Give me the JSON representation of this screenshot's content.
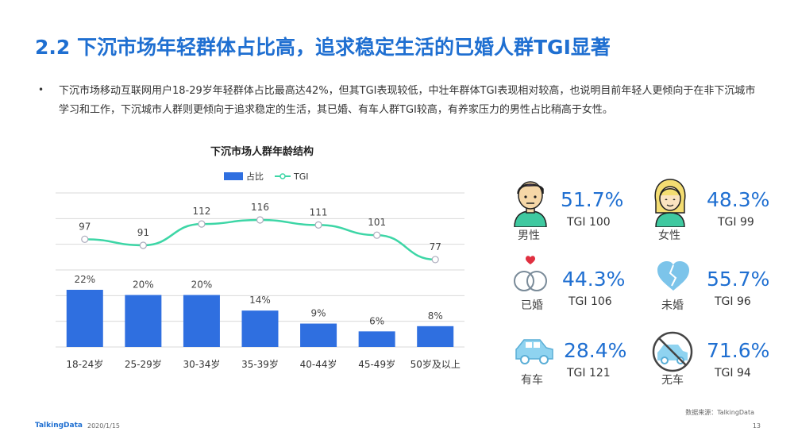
{
  "header": {
    "title": "2.2 下沉市场年轻群体占比高，追求稳定生活的已婚人群TGI显著"
  },
  "body": {
    "bullet": "•",
    "paragraph": "下沉市场移动互联网用户18-29岁年轻群体占比最高达42%，但其TGI表现较低，中壮年群体TGI表现相对较高，也说明目前年轻人更倾向于在非下沉城市学习和工作，下沉城市人群则更倾向于追求稳定的生活，其已婚、有车人群TGI较高，有养家压力的男性占比稍高于女性。"
  },
  "chart_data": {
    "type": "bar",
    "title": "下沉市场人群年龄结构",
    "categories": [
      "18-24岁",
      "25-29岁",
      "30-34岁",
      "35-39岁",
      "40-44岁",
      "45-49岁",
      "50岁及以上"
    ],
    "series": [
      {
        "name": "占比",
        "type": "bar",
        "values": [
          22,
          20,
          20,
          14,
          9,
          6,
          8
        ],
        "labels": [
          "22%",
          "20%",
          "20%",
          "14%",
          "9%",
          "6%",
          "8%"
        ],
        "color": "#2f6fe0"
      },
      {
        "name": "TGI",
        "type": "line",
        "values": [
          97,
          91,
          112,
          116,
          111,
          101,
          77
        ],
        "color": "#3dd6a6"
      }
    ],
    "legend": "top-center",
    "grid": true
  },
  "stats": {
    "male": {
      "label": "男性",
      "pct": "51.7%",
      "tgi": "TGI 100",
      "icon": "male-user-icon"
    },
    "female": {
      "label": "女性",
      "pct": "48.3%",
      "tgi": "TGI 99",
      "icon": "female-user-icon"
    },
    "married": {
      "label": "已婚",
      "pct": "44.3%",
      "tgi": "TGI 106",
      "icon": "rings-icon"
    },
    "unmarried": {
      "label": "未婚",
      "pct": "55.7%",
      "tgi": "TGI 96",
      "icon": "heart-icon"
    },
    "car": {
      "label": "有车",
      "pct": "28.4%",
      "tgi": "TGI 121",
      "icon": "car-icon"
    },
    "nocar": {
      "label": "无车",
      "pct": "71.6%",
      "tgi": "TGI 94",
      "icon": "no-car-icon"
    }
  },
  "colors": {
    "accent": "#1f6fd1",
    "bar": "#2f6fe0",
    "line": "#3dd6a6"
  },
  "footer": {
    "source": "数据来源：TalkingData",
    "logo": "TalkingData",
    "date": "2020/1/15",
    "page": "13"
  }
}
